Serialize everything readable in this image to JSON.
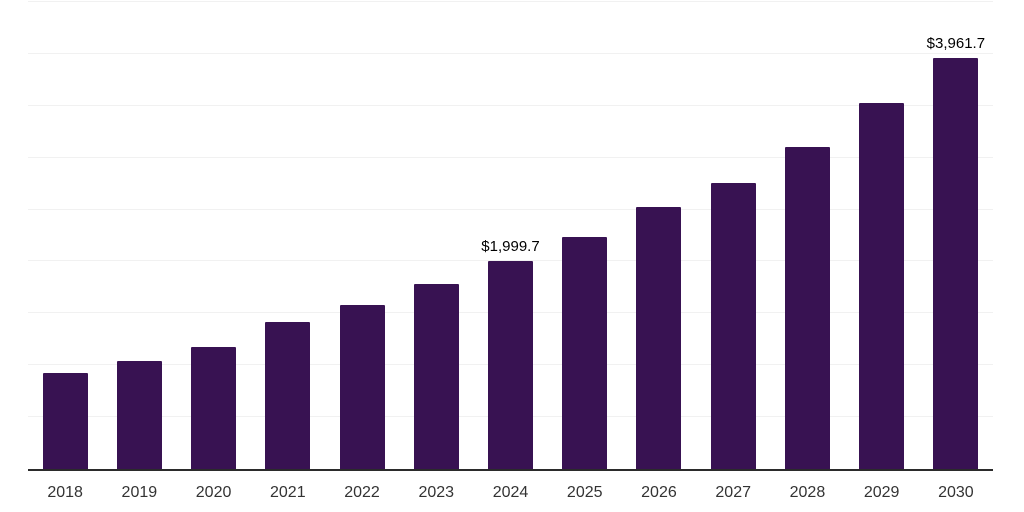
{
  "chart_data": {
    "type": "bar",
    "title": "",
    "xlabel": "",
    "ylabel": "",
    "categories": [
      "2018",
      "2019",
      "2020",
      "2021",
      "2022",
      "2023",
      "2024",
      "2025",
      "2026",
      "2027",
      "2028",
      "2029",
      "2030"
    ],
    "values": [
      925,
      1040,
      1175,
      1415,
      1580,
      1785,
      1999.7,
      2240,
      2525,
      2760,
      3105,
      3530,
      3961.7
    ],
    "data_labels": {
      "6": "$1,999.7",
      "12": "$3,961.7"
    },
    "ylim": [
      0,
      4500
    ],
    "gridline_step": 500,
    "grid": "horizontal-only",
    "legend": "none",
    "y_tick_labels_visible": false,
    "bar_color": "#381252",
    "gridline_color": "#f1f1f1",
    "axis_line_color": "#2b2b2b",
    "x_label_color": "#333333",
    "data_label_color": "#000000",
    "background_color": "#ffffff"
  }
}
